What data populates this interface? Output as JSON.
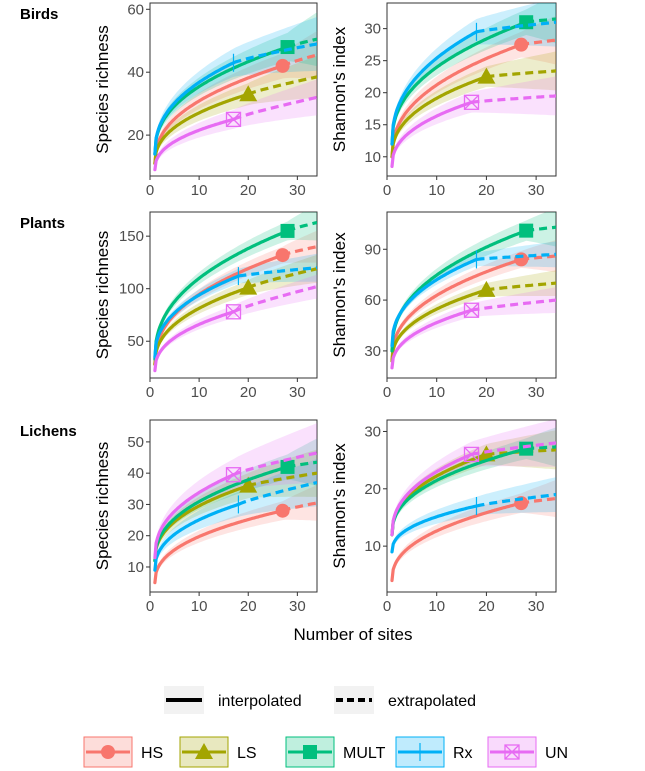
{
  "figure": {
    "xlabel": "Number of sites",
    "line_types": [
      {
        "key": "solid",
        "label": "interpolated"
      },
      {
        "key": "dashed",
        "label": "extrapolated"
      }
    ],
    "groups": [
      {
        "key": "HS",
        "label": "HS",
        "color": "#F8766D",
        "marker": "circle"
      },
      {
        "key": "LS",
        "label": "LS",
        "color": "#A3A500",
        "marker": "triangle"
      },
      {
        "key": "MULT",
        "label": "MULT",
        "color": "#00BF7D",
        "marker": "square"
      },
      {
        "key": "Rx",
        "label": "Rx",
        "color": "#00B0F6",
        "marker": "plus"
      },
      {
        "key": "UN",
        "label": "UN",
        "color": "#E76BF3",
        "marker": "boxx"
      }
    ]
  },
  "chart_data": [
    {
      "type": "line",
      "row_label": "Birds",
      "ylabel": "Species richness",
      "xlim": [
        0,
        34
      ],
      "ylim": [
        7,
        62
      ],
      "xticks": [
        0,
        10,
        20,
        30
      ],
      "yticks": [
        20,
        40,
        60
      ],
      "series": [
        {
          "group": "HS",
          "n_obs": 27,
          "start": 11,
          "at_obs": 42,
          "end": 45.5,
          "band_obs": 4
        },
        {
          "group": "LS",
          "n_obs": 20,
          "start": 11,
          "at_obs": 33,
          "end": 38.5,
          "band_obs": 3.5
        },
        {
          "group": "MULT",
          "n_obs": 28,
          "start": 14,
          "at_obs": 48,
          "end": 50.5,
          "band_obs": 4.5
        },
        {
          "group": "Rx",
          "n_obs": 17,
          "start": 14,
          "at_obs": 43,
          "end": 49,
          "band_obs": 4.5
        },
        {
          "group": "UN",
          "n_obs": 17,
          "start": 9,
          "at_obs": 25,
          "end": 32,
          "band_obs": 3
        }
      ]
    },
    {
      "type": "line",
      "row_label": "",
      "ylabel": "Shannon's index",
      "xlim": [
        0,
        34
      ],
      "ylim": [
        7,
        34
      ],
      "xticks": [
        0,
        10,
        20,
        30
      ],
      "yticks": [
        10,
        15,
        20,
        25,
        30
      ],
      "series": [
        {
          "group": "HS",
          "n_obs": 27,
          "start": 10,
          "at_obs": 27.5,
          "end": 28.2,
          "band_obs": 2
        },
        {
          "group": "LS",
          "n_obs": 20,
          "start": 10,
          "at_obs": 22.5,
          "end": 23.4,
          "band_obs": 1.6
        },
        {
          "group": "MULT",
          "n_obs": 28,
          "start": 12,
          "at_obs": 31,
          "end": 31.5,
          "band_obs": 2
        },
        {
          "group": "Rx",
          "n_obs": 18,
          "start": 12,
          "at_obs": 29.5,
          "end": 31,
          "band_obs": 2
        },
        {
          "group": "UN",
          "n_obs": 17,
          "start": 8.5,
          "at_obs": 18.5,
          "end": 19.5,
          "band_obs": 1.6
        }
      ]
    },
    {
      "type": "line",
      "row_label": "Plants",
      "ylabel": "Species richness",
      "xlim": [
        0,
        34
      ],
      "ylim": [
        15,
        173
      ],
      "xticks": [
        0,
        10,
        20,
        30
      ],
      "yticks": [
        50,
        100,
        150
      ],
      "series": [
        {
          "group": "HS",
          "n_obs": 27,
          "start": 28,
          "at_obs": 132,
          "end": 140,
          "band_obs": 8
        },
        {
          "group": "LS",
          "n_obs": 20,
          "start": 28,
          "at_obs": 101,
          "end": 119,
          "band_obs": 7
        },
        {
          "group": "MULT",
          "n_obs": 28,
          "start": 33,
          "at_obs": 155,
          "end": 163,
          "band_obs": 9
        },
        {
          "group": "Rx",
          "n_obs": 18,
          "start": 35,
          "at_obs": 112,
          "end": 120,
          "band_obs": 7
        },
        {
          "group": "UN",
          "n_obs": 17,
          "start": 22,
          "at_obs": 78,
          "end": 102,
          "band_obs": 6
        }
      ]
    },
    {
      "type": "line",
      "row_label": "",
      "ylabel": "Shannon's index",
      "xlim": [
        0,
        34
      ],
      "ylim": [
        14,
        112
      ],
      "xticks": [
        0,
        10,
        20,
        30
      ],
      "yticks": [
        30,
        60,
        90
      ],
      "series": [
        {
          "group": "HS",
          "n_obs": 27,
          "start": 25,
          "at_obs": 84,
          "end": 86,
          "band_obs": 5
        },
        {
          "group": "LS",
          "n_obs": 20,
          "start": 24,
          "at_obs": 66,
          "end": 70,
          "band_obs": 4
        },
        {
          "group": "MULT",
          "n_obs": 28,
          "start": 30,
          "at_obs": 101,
          "end": 103,
          "band_obs": 6
        },
        {
          "group": "Rx",
          "n_obs": 18,
          "start": 33,
          "at_obs": 84,
          "end": 87,
          "band_obs": 4
        },
        {
          "group": "UN",
          "n_obs": 17,
          "start": 20,
          "at_obs": 54,
          "end": 60,
          "band_obs": 4
        }
      ]
    },
    {
      "type": "line",
      "row_label": "Lichens",
      "ylabel": "Species richness",
      "xlim": [
        0,
        34
      ],
      "ylim": [
        2,
        57
      ],
      "xticks": [
        0,
        10,
        20,
        30
      ],
      "yticks": [
        10,
        20,
        30,
        40,
        50
      ],
      "series": [
        {
          "group": "HS",
          "n_obs": 27,
          "start": 5,
          "at_obs": 28,
          "end": 30.5,
          "band_obs": 3
        },
        {
          "group": "LS",
          "n_obs": 20,
          "start": 12,
          "at_obs": 36,
          "end": 40,
          "band_obs": 4
        },
        {
          "group": "MULT",
          "n_obs": 28,
          "start": 12,
          "at_obs": 42,
          "end": 43.5,
          "band_obs": 4
        },
        {
          "group": "Rx",
          "n_obs": 18,
          "start": 9,
          "at_obs": 30,
          "end": 37,
          "band_obs": 4
        },
        {
          "group": "UN",
          "n_obs": 17,
          "start": 13,
          "at_obs": 39.5,
          "end": 46.5,
          "band_obs": 5
        }
      ]
    },
    {
      "type": "line",
      "row_label": "",
      "ylabel": "Shannon's index",
      "xlim": [
        0,
        34
      ],
      "ylim": [
        2,
        32
      ],
      "xticks": [
        0,
        10,
        20,
        30
      ],
      "yticks": [
        10,
        20,
        30
      ],
      "series": [
        {
          "group": "HS",
          "n_obs": 27,
          "start": 4,
          "at_obs": 17.5,
          "end": 18.3,
          "band_obs": 1.7
        },
        {
          "group": "LS",
          "n_obs": 20,
          "start": 12,
          "at_obs": 26,
          "end": 26.8,
          "band_obs": 1.8
        },
        {
          "group": "MULT",
          "n_obs": 28,
          "start": 12,
          "at_obs": 27,
          "end": 27.3,
          "band_obs": 1.8
        },
        {
          "group": "Rx",
          "n_obs": 18,
          "start": 9,
          "at_obs": 17,
          "end": 19,
          "band_obs": 1.6
        },
        {
          "group": "UN",
          "n_obs": 17,
          "start": 12,
          "at_obs": 26,
          "end": 28,
          "band_obs": 2.2
        }
      ]
    }
  ]
}
